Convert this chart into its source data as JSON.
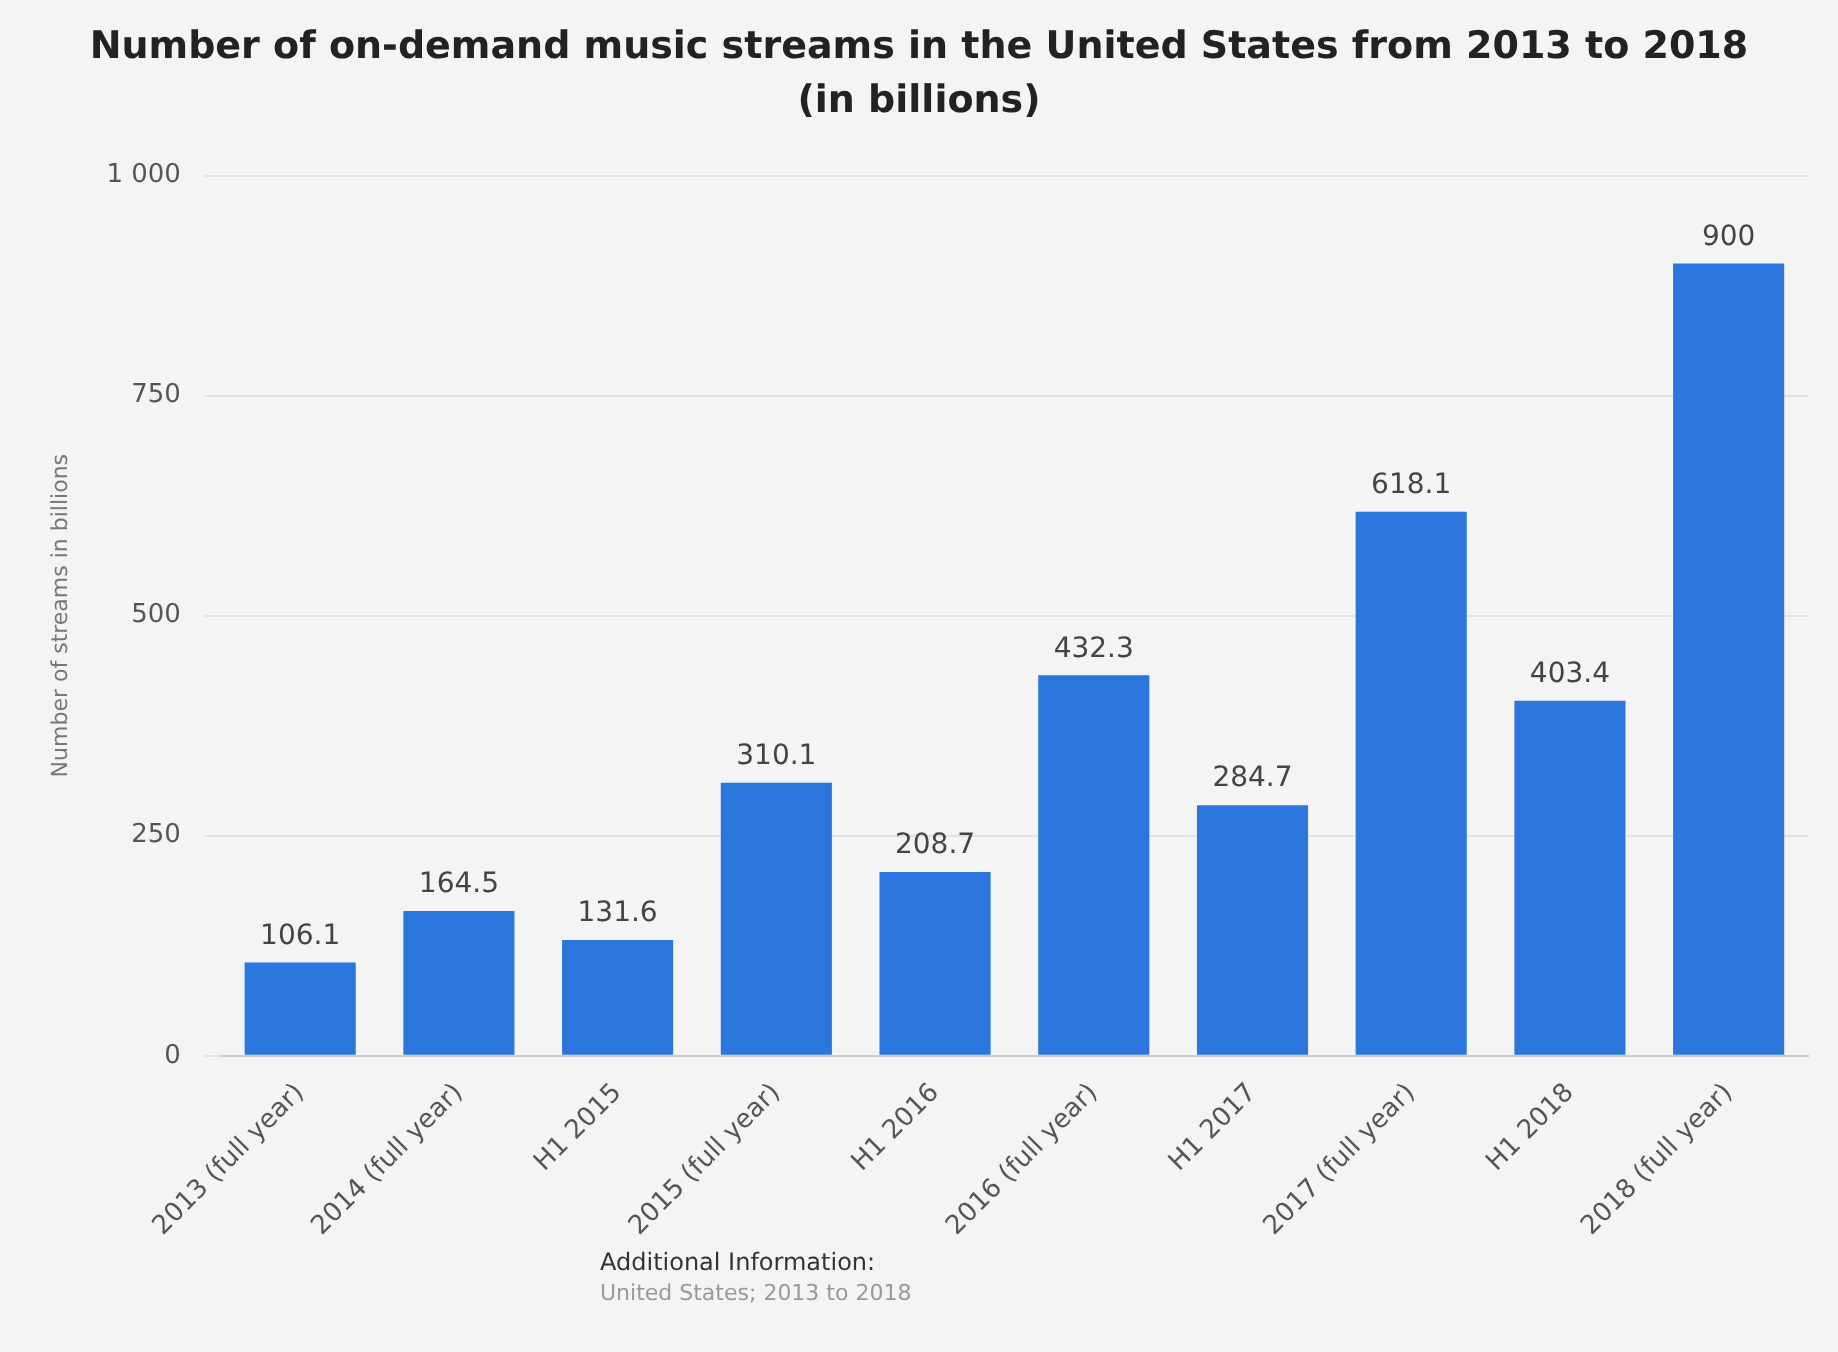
{
  "chart_data": {
    "type": "bar",
    "title": "Number of on-demand music streams in the United States from 2013 to 2018 (in billions)",
    "ylabel": "Number of streams in billions",
    "categories": [
      "2013 (full year)",
      "2014 (full year)",
      "H1 2015",
      "2015 (full year)",
      "H1 2016",
      "2016 (full year)",
      "H1 2017",
      "2017 (full year)",
      "H1 2018",
      "2018 (full year)"
    ],
    "values": [
      106.1,
      164.5,
      131.6,
      310.1,
      208.7,
      432.3,
      284.7,
      618.1,
      403.4,
      900
    ],
    "color": "#2a76dd",
    "ylim": [
      0,
      1000
    ],
    "yticks": [
      0,
      250,
      500,
      750,
      {
        "value": 1000,
        "label": "1 000"
      }
    ],
    "grid": "y",
    "legend": false,
    "data_labels": true,
    "annotations": [
      "Additional Information:",
      "United States; 2013 to 2018"
    ]
  }
}
